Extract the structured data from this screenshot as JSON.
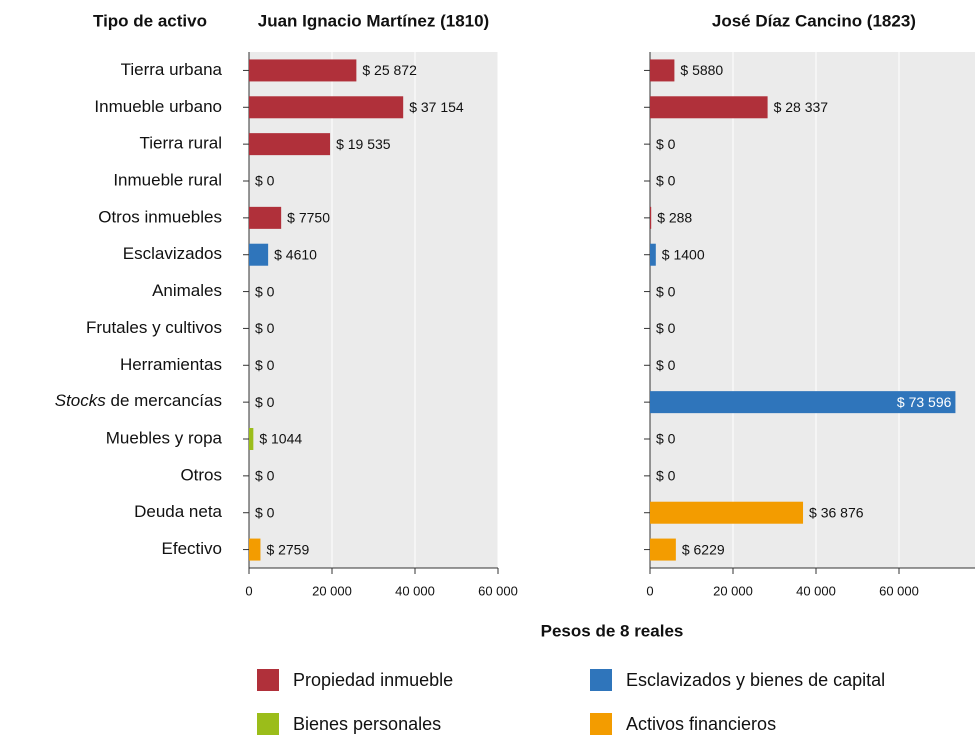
{
  "chart_data": {
    "type": "bar",
    "ylabel": "Tipo de activo",
    "xlabel": "Pesos de 8 reales",
    "categories": [
      "Tierra urbana",
      "Inmueble urbano",
      "Tierra rural",
      "Inmueble rural",
      "Otros inmuebles",
      "Esclavizados",
      "Animales",
      "Frutales y cultivos",
      "Herramientas",
      [
        {
          "text": "Stocks",
          "style": "italic"
        },
        {
          "text": " de mercancías"
        }
      ],
      "Muebles y ropa",
      "Otros",
      "Deuda neta",
      "Efectivo"
    ],
    "colors": [
      "#b0303a",
      "#b0303a",
      "#b0303a",
      "#b0303a",
      "#b0303a",
      "#2f75bb",
      "#2f75bb",
      "#2f75bb",
      "#2f75bb",
      "#2f75bb",
      "#9bbd1a",
      "#9bbd1a",
      "#f39c00",
      "#f39c00"
    ],
    "panels": [
      {
        "title": "Juan Ignacio Martínez (1810)",
        "values": [
          25872,
          37154,
          19535,
          0,
          7750,
          4610,
          0,
          0,
          0,
          0,
          1044,
          0,
          0,
          2759
        ],
        "value_labels": [
          "$ 25 872",
          "$ 37 154",
          "$ 19 535",
          "$ 0",
          "$ 7750",
          "$ 4610",
          "$ 0",
          "$ 0",
          "$ 0",
          "$ 0",
          "$ 1044",
          "$ 0",
          "$ 0",
          "$ 2759"
        ],
        "xlim": [
          0,
          60000
        ],
        "xticks": [
          0,
          {
            "value": 20000,
            "label": "20 000"
          },
          {
            "value": 40000,
            "label": "40 000"
          },
          {
            "value": 60000,
            "label": "60 000"
          }
        ]
      },
      {
        "title": "José Díaz Cancino (1823)",
        "values": [
          5880,
          28337,
          0,
          0,
          288,
          1400,
          0,
          0,
          0,
          73596,
          0,
          0,
          36876,
          6229
        ],
        "value_labels": [
          "$ 5880",
          "$ 28 337",
          "$ 0",
          "$ 0",
          "$ 288",
          "$ 1400",
          "$ 0",
          "$ 0",
          "$ 0",
          "$ 73 596",
          "$ 0",
          "$ 0",
          "$ 36 876",
          "$ 6229"
        ],
        "xlim": [
          0,
          79000
        ],
        "xticks": [
          0,
          {
            "value": 20000,
            "label": "20 000"
          },
          {
            "value": 40000,
            "label": "40 000"
          },
          {
            "value": 60000,
            "label": "60 000"
          }
        ]
      }
    ],
    "legend": [
      {
        "name": "Propiedad inmueble",
        "color": "#b0303a"
      },
      {
        "name": "Esclavizados y bienes de capital",
        "color": "#2f75bb"
      },
      {
        "name": "Bienes personales",
        "color": "#9bbd1a"
      },
      {
        "name": "Activos financieros",
        "color": "#f39c00"
      }
    ]
  }
}
